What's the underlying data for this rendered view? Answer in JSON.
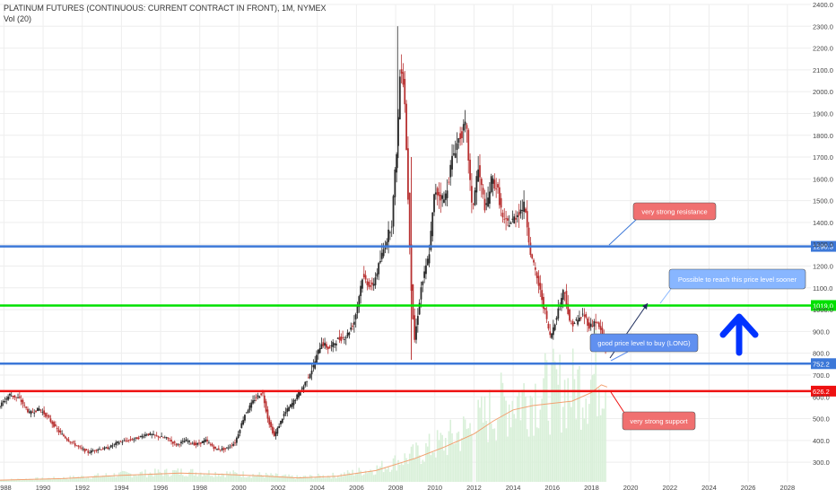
{
  "header": {
    "title": "PLATINUM FUTURES (CONTINUOUS: CURRENT CONTRACT IN FRONT), 1M, NYMEX",
    "volume_label": "Vol (20)"
  },
  "colors": {
    "up": "#2a2a2a",
    "down": "#b83232",
    "resistance_line": "#3c78d8",
    "green_line": "#00e000",
    "support_line": "#ee1111",
    "volume": "#d9f0d9",
    "volume_ma": "#f2a070",
    "label_red": "#f07070",
    "label_blue": "#6090f0",
    "label_lightblue": "#88b6ff",
    "arrow": "#0033ff",
    "axis_text": "#444444",
    "grid": "#eeeeee"
  },
  "chart_data": {
    "type": "candlestick",
    "title": "PLATINUM FUTURES (CONTINUOUS: CURRENT CONTRACT IN FRONT), 1M, NYMEX",
    "x_ticks": [
      "1988",
      "1990",
      "1992",
      "1994",
      "1996",
      "1998",
      "2000",
      "2002",
      "2004",
      "2006",
      "2008",
      "2010",
      "2012",
      "2014",
      "2016",
      "2018",
      "2020",
      "2022",
      "2024",
      "2026",
      "2028"
    ],
    "y_ticks": [
      "300.0",
      "400.0",
      "500.0",
      "600.0",
      "700.0",
      "800.0",
      "900.0",
      "1000.0",
      "1100.0",
      "1200.0",
      "1300.0",
      "1400.0",
      "1500.0",
      "1600.0",
      "1700.0",
      "1800.0",
      "1900.0",
      "2000.0",
      "2100.0",
      "2200.0",
      "2300.0",
      "2400.0"
    ],
    "xlim": [
      1987.8,
      2029.2
    ],
    "ylim": [
      210,
      2400
    ],
    "price_path": [
      [
        1987.8,
        560
      ],
      [
        1988.3,
        610
      ],
      [
        1988.8,
        590
      ],
      [
        1989.3,
        525
      ],
      [
        1989.8,
        545
      ],
      [
        1990.2,
        510
      ],
      [
        1990.8,
        440
      ],
      [
        1991.3,
        400
      ],
      [
        1991.8,
        370
      ],
      [
        1992.3,
        345
      ],
      [
        1992.8,
        360
      ],
      [
        1993.3,
        365
      ],
      [
        1993.8,
        390
      ],
      [
        1994.3,
        400
      ],
      [
        1994.8,
        410
      ],
      [
        1995.3,
        430
      ],
      [
        1995.8,
        420
      ],
      [
        1996.3,
        410
      ],
      [
        1996.8,
        380
      ],
      [
        1997.3,
        400
      ],
      [
        1997.8,
        380
      ],
      [
        1998.3,
        400
      ],
      [
        1998.8,
        360
      ],
      [
        1999.3,
        360
      ],
      [
        1999.8,
        390
      ],
      [
        2000.3,
        520
      ],
      [
        2000.8,
        590
      ],
      [
        2001.2,
        620
      ],
      [
        2001.5,
        490
      ],
      [
        2001.8,
        420
      ],
      [
        2002.3,
        520
      ],
      [
        2002.8,
        580
      ],
      [
        2003.3,
        650
      ],
      [
        2003.8,
        740
      ],
      [
        2004.2,
        850
      ],
      [
        2004.6,
        820
      ],
      [
        2005.0,
        860
      ],
      [
        2005.5,
        880
      ],
      [
        2005.9,
        950
      ],
      [
        2006.3,
        1150
      ],
      [
        2006.8,
        1100
      ],
      [
        2007.3,
        1250
      ],
      [
        2007.8,
        1400
      ],
      [
        2008.1,
        1800
      ],
      [
        2008.25,
        2150
      ],
      [
        2008.45,
        2000
      ],
      [
        2008.6,
        1600
      ],
      [
        2008.8,
        1100
      ],
      [
        2008.95,
        850
      ],
      [
        2009.3,
        1100
      ],
      [
        2009.7,
        1250
      ],
      [
        2010.0,
        1550
      ],
      [
        2010.5,
        1500
      ],
      [
        2010.9,
        1700
      ],
      [
        2011.2,
        1780
      ],
      [
        2011.6,
        1850
      ],
      [
        2011.9,
        1450
      ],
      [
        2012.2,
        1650
      ],
      [
        2012.6,
        1450
      ],
      [
        2012.9,
        1600
      ],
      [
        2013.2,
        1550
      ],
      [
        2013.5,
        1400
      ],
      [
        2013.9,
        1400
      ],
      [
        2014.3,
        1450
      ],
      [
        2014.6,
        1480
      ],
      [
        2014.9,
        1250
      ],
      [
        2015.2,
        1150
      ],
      [
        2015.6,
        1000
      ],
      [
        2015.9,
        870
      ],
      [
        2016.3,
        1000
      ],
      [
        2016.6,
        1100
      ],
      [
        2016.9,
        930
      ],
      [
        2017.3,
        950
      ],
      [
        2017.6,
        980
      ],
      [
        2017.9,
        920
      ],
      [
        2018.2,
        950
      ],
      [
        2018.5,
        900
      ],
      [
        2018.75,
        800
      ]
    ],
    "volume_ma_path": [
      [
        1987.8,
        218
      ],
      [
        1991.0,
        225
      ],
      [
        1994.0,
        240
      ],
      [
        1997.0,
        250
      ],
      [
        1999.0,
        245
      ],
      [
        2001.0,
        238
      ],
      [
        2003.0,
        228
      ],
      [
        2005.0,
        236
      ],
      [
        2007.0,
        262
      ],
      [
        2009.0,
        318
      ],
      [
        2010.5,
        370
      ],
      [
        2012.0,
        430
      ],
      [
        2013.0,
        490
      ],
      [
        2014.0,
        540
      ],
      [
        2015.0,
        560
      ],
      [
        2016.0,
        570
      ],
      [
        2017.0,
        580
      ],
      [
        2018.0,
        620
      ],
      [
        2018.5,
        655
      ],
      [
        2018.8,
        645
      ]
    ],
    "levels": [
      {
        "price": 1290.3,
        "label": "1290.3",
        "color_key": "resistance_line"
      },
      {
        "price": 1019.0,
        "label": "1019.0",
        "color_key": "green_line"
      },
      {
        "price": 752.2,
        "label": "752.2",
        "color_key": "resistance_line"
      },
      {
        "price": 626.2,
        "label": "626.2",
        "color_key": "support_line"
      }
    ],
    "annotations": {
      "resistance": "very strong resistance",
      "support": "very strong support",
      "buy": "good price level to buy (LONG)",
      "target": "Possible to reach this price level sooner"
    }
  }
}
